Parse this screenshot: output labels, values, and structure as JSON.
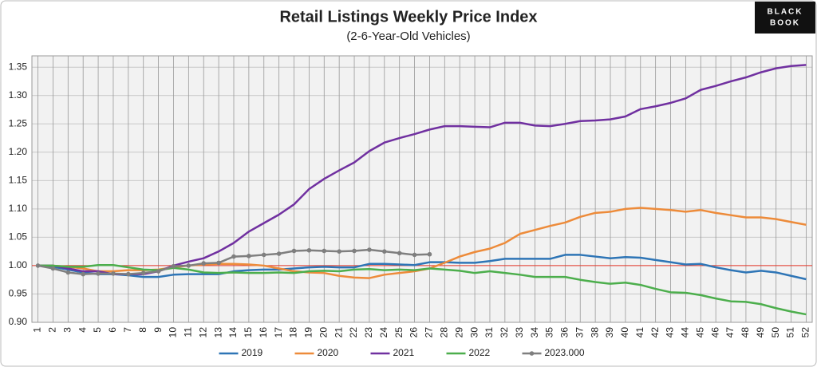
{
  "chart_data": {
    "type": "line",
    "title": "Retail Listings Weekly Price Index",
    "subtitle": "(2-6-Year-Old Vehicles)",
    "annotations": [
      "BLACK",
      "BOOK"
    ],
    "x": [
      1,
      2,
      3,
      4,
      5,
      6,
      7,
      8,
      9,
      10,
      11,
      12,
      13,
      14,
      15,
      16,
      17,
      18,
      19,
      20,
      21,
      22,
      23,
      24,
      25,
      26,
      27,
      28,
      29,
      30,
      31,
      32,
      33,
      34,
      35,
      36,
      37,
      38,
      39,
      40,
      41,
      42,
      43,
      44,
      45,
      46,
      47,
      48,
      49,
      50,
      51,
      52
    ],
    "xlim": [
      0.6,
      52.4
    ],
    "xticks": [
      1,
      2,
      3,
      4,
      5,
      6,
      7,
      8,
      9,
      10,
      11,
      12,
      13,
      14,
      15,
      16,
      17,
      18,
      19,
      20,
      21,
      22,
      23,
      24,
      25,
      26,
      27,
      28,
      29,
      30,
      31,
      32,
      33,
      34,
      35,
      36,
      37,
      38,
      39,
      40,
      41,
      42,
      43,
      44,
      45,
      46,
      47,
      48,
      49,
      50,
      51,
      52
    ],
    "ylim": [
      0.9,
      1.37
    ],
    "yticks": [
      {
        "value": 0.9,
        "label": "0.90"
      },
      0.95,
      {
        "value": 1.0,
        "label": "1.00"
      },
      1.05,
      {
        "value": 1.1,
        "label": "1.10"
      },
      1.15,
      {
        "value": 1.2,
        "label": "1.20"
      },
      1.25,
      {
        "value": 1.3,
        "label": "1.30"
      },
      1.35
    ],
    "grid": true,
    "reference_line": {
      "value": 1.0,
      "color": "#e8392b"
    },
    "legend": "bottom",
    "series": [
      {
        "name": "2019",
        "color": "#2e75b6",
        "values": [
          1.0,
          0.998,
          0.993,
          0.988,
          0.985,
          0.985,
          0.983,
          0.98,
          0.98,
          0.984,
          0.985,
          0.985,
          0.985,
          0.99,
          0.992,
          0.993,
          0.993,
          0.995,
          0.997,
          0.998,
          0.997,
          0.997,
          1.003,
          1.003,
          1.002,
          1.001,
          1.006,
          1.006,
          1.005,
          1.005,
          1.008,
          1.012,
          1.012,
          1.012,
          1.012,
          1.019,
          1.019,
          1.016,
          1.013,
          1.015,
          1.014,
          1.01,
          1.006,
          1.002,
          1.003,
          0.997,
          0.992,
          0.988,
          0.991,
          0.988,
          0.982,
          0.976
        ]
      },
      {
        "name": "2020",
        "color": "#ed8b3a",
        "values": [
          1.0,
          1.0,
          0.998,
          0.995,
          0.99,
          0.99,
          0.992,
          0.992,
          0.993,
          0.997,
          1.0,
          1.002,
          1.003,
          1.003,
          1.002,
          1.0,
          0.995,
          0.99,
          0.988,
          0.987,
          0.982,
          0.979,
          0.978,
          0.984,
          0.987,
          0.99,
          0.995,
          1.005,
          1.016,
          1.024,
          1.03,
          1.04,
          1.056,
          1.063,
          1.07,
          1.076,
          1.086,
          1.093,
          1.095,
          1.1,
          1.102,
          1.1,
          1.098,
          1.095,
          1.098,
          1.093,
          1.089,
          1.085,
          1.085,
          1.082,
          1.077,
          1.072
        ]
      },
      {
        "name": "2021",
        "color": "#7030a0",
        "values": [
          1.0,
          1.0,
          0.995,
          0.99,
          0.99,
          0.985,
          0.985,
          0.985,
          0.99,
          1.0,
          1.007,
          1.013,
          1.025,
          1.04,
          1.06,
          1.075,
          1.09,
          1.108,
          1.135,
          1.153,
          1.168,
          1.182,
          1.202,
          1.217,
          1.225,
          1.232,
          1.24,
          1.246,
          1.246,
          1.245,
          1.244,
          1.252,
          1.252,
          1.247,
          1.246,
          1.25,
          1.255,
          1.256,
          1.258,
          1.263,
          1.276,
          1.281,
          1.287,
          1.295,
          1.31,
          1.317,
          1.325,
          1.332,
          1.341,
          1.348,
          1.352,
          1.354
        ]
      },
      {
        "name": "2022",
        "color": "#4cae4c",
        "values": [
          1.0,
          1.0,
          0.998,
          0.998,
          1.001,
          1.001,
          0.997,
          0.993,
          0.992,
          0.996,
          0.993,
          0.988,
          0.987,
          0.988,
          0.987,
          0.987,
          0.988,
          0.987,
          0.99,
          0.991,
          0.99,
          0.993,
          0.994,
          0.992,
          0.993,
          0.992,
          0.995,
          0.993,
          0.991,
          0.987,
          0.99,
          0.987,
          0.984,
          0.98,
          0.98,
          0.98,
          0.975,
          0.971,
          0.968,
          0.97,
          0.966,
          0.959,
          0.953,
          0.952,
          0.948,
          0.942,
          0.937,
          0.936,
          0.932,
          0.925,
          0.919,
          0.914
        ]
      },
      {
        "name": "2023.000",
        "color": "#7f7f7f",
        "markers": true,
        "values": [
          1.0,
          0.995,
          0.988,
          0.985,
          0.986,
          0.986,
          0.985,
          0.987,
          0.99,
          0.999,
          1.0,
          1.004,
          1.005,
          1.016,
          1.017,
          1.019,
          1.021,
          1.026,
          1.027,
          1.026,
          1.025,
          1.026,
          1.028,
          1.025,
          1.022,
          1.019,
          1.02,
          null,
          null,
          null,
          null,
          null,
          null,
          null,
          null,
          null,
          null,
          null,
          null,
          null,
          null,
          null,
          null,
          null,
          null,
          null,
          null,
          null,
          null,
          null,
          null,
          null
        ]
      }
    ]
  }
}
